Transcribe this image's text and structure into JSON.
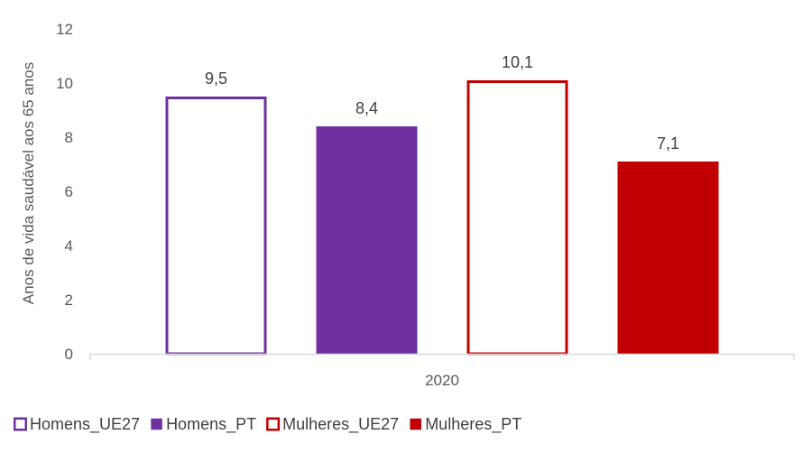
{
  "chart_data": {
    "type": "bar",
    "categories": [
      "2020"
    ],
    "series": [
      {
        "name": "Homens_UE27",
        "values": [
          9.5
        ],
        "label": "9,5",
        "style": "outline",
        "color": "#7030A0"
      },
      {
        "name": "Homens_PT",
        "values": [
          8.4
        ],
        "label": "8,4",
        "style": "filled",
        "color": "#7030A0"
      },
      {
        "name": "Mulheres_UE27",
        "values": [
          10.1
        ],
        "label": "10,1",
        "style": "outline",
        "color": "#C00000"
      },
      {
        "name": "Mulheres_PT",
        "values": [
          7.1
        ],
        "label": "7,1",
        "style": "filled",
        "color": "#C00000"
      }
    ],
    "ylabel": "Anos de vida saudável aos 65 anos",
    "xlabel": "",
    "ylim": [
      0,
      12
    ],
    "yticks": [
      0,
      2,
      4,
      6,
      8,
      10,
      12
    ],
    "ytick_labels": [
      "0",
      "2",
      "4",
      "6",
      "8",
      "10",
      "12"
    ],
    "grid": false,
    "legend_position": "bottom-left"
  }
}
